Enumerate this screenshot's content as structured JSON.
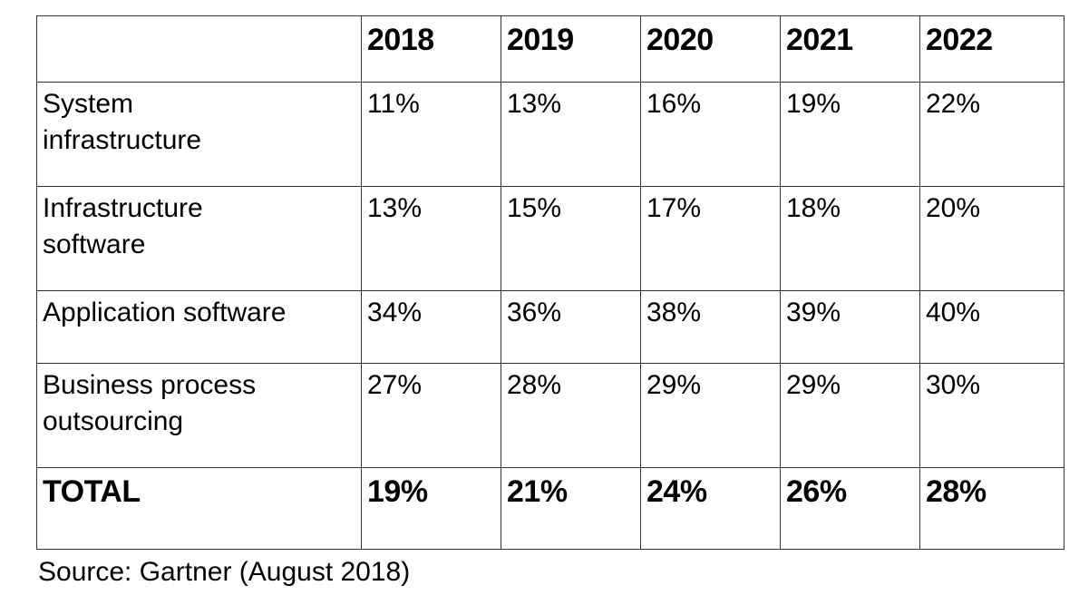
{
  "table": {
    "columns": [
      "",
      "2018",
      "2019",
      "2020",
      "2021",
      "2022"
    ],
    "rows": [
      {
        "label": "System\ninfrastructure",
        "values": [
          "11%",
          "13%",
          "16%",
          "19%",
          "22%"
        ],
        "bold": false
      },
      {
        "label": "Infrastructure\nsoftware",
        "values": [
          "13%",
          "15%",
          "17%",
          "18%",
          "20%"
        ],
        "bold": false
      },
      {
        "label": "Application software",
        "values": [
          "34%",
          "36%",
          "38%",
          "39%",
          "40%"
        ],
        "bold": false
      },
      {
        "label": "Business process\noutsourcing",
        "values": [
          "27%",
          "28%",
          "29%",
          "29%",
          "30%"
        ],
        "bold": false
      },
      {
        "label": "TOTAL",
        "values": [
          "19%",
          "21%",
          "24%",
          "26%",
          "28%"
        ],
        "bold": true
      }
    ]
  },
  "source": "Source: Gartner (August 2018)",
  "colors": {
    "text": "#000000",
    "border": "#333333",
    "background": "#ffffff"
  },
  "chart_data": {
    "type": "table",
    "title": "",
    "columns": [
      "",
      "2018",
      "2019",
      "2020",
      "2021",
      "2022"
    ],
    "rows": [
      [
        "System infrastructure",
        "11%",
        "13%",
        "16%",
        "19%",
        "22%"
      ],
      [
        "Infrastructure software",
        "13%",
        "15%",
        "17%",
        "18%",
        "20%"
      ],
      [
        "Application software",
        "34%",
        "36%",
        "38%",
        "39%",
        "40%"
      ],
      [
        "Business process outsourcing",
        "27%",
        "28%",
        "29%",
        "29%",
        "30%"
      ],
      [
        "TOTAL",
        "19%",
        "21%",
        "24%",
        "26%",
        "28%"
      ]
    ],
    "series": [
      {
        "name": "System infrastructure",
        "values": [
          11,
          13,
          16,
          19,
          22
        ]
      },
      {
        "name": "Infrastructure software",
        "values": [
          13,
          15,
          17,
          18,
          20
        ]
      },
      {
        "name": "Application software",
        "values": [
          34,
          36,
          38,
          39,
          40
        ]
      },
      {
        "name": "Business process outsourcing",
        "values": [
          27,
          28,
          29,
          29,
          30
        ]
      },
      {
        "name": "TOTAL",
        "values": [
          19,
          21,
          24,
          26,
          28
        ]
      }
    ],
    "categories": [
      "2018",
      "2019",
      "2020",
      "2021",
      "2022"
    ],
    "unit": "%",
    "source": "Source: Gartner (August 2018)"
  }
}
